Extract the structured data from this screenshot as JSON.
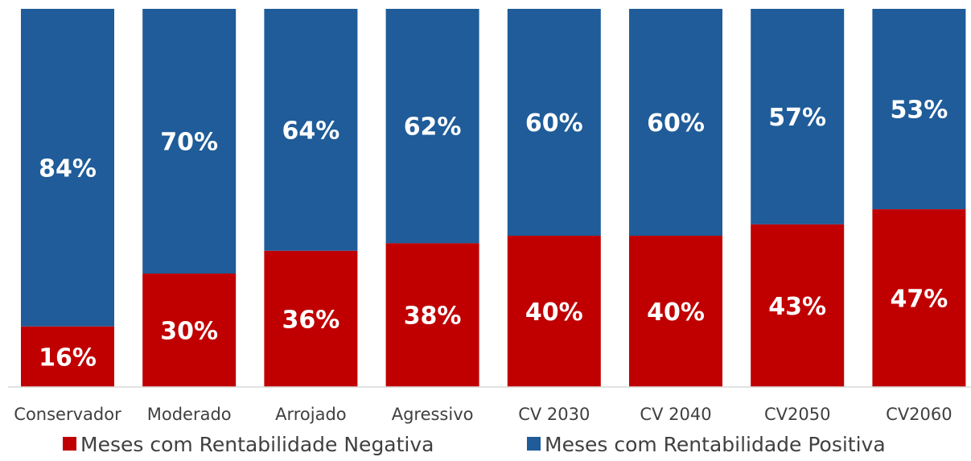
{
  "chart_data": {
    "type": "bar",
    "stacked": true,
    "percent_stacked": true,
    "categories": [
      "Conservador",
      "Moderado",
      "Arrojado",
      "Agressivo",
      "CV 2030",
      "CV 2040",
      "CV2050",
      "CV2060"
    ],
    "series": [
      {
        "name": "Meses com Rentabilidade Negativa",
        "color": "#C00000",
        "values": [
          16,
          30,
          36,
          38,
          40,
          40,
          43,
          47
        ],
        "labels": [
          "16%",
          "30%",
          "36%",
          "38%",
          "40%",
          "40%",
          "43%",
          "47%"
        ]
      },
      {
        "name": "Meses com Rentabilidade Positiva",
        "color": "#1F5C99",
        "values": [
          84,
          70,
          64,
          62,
          60,
          60,
          57,
          53
        ],
        "labels": [
          "84%",
          "70%",
          "64%",
          "62%",
          "60%",
          "60%",
          "57%",
          "53%"
        ]
      }
    ],
    "ylim": [
      0,
      100
    ],
    "grid": false,
    "legend_position": "bottom",
    "title": "",
    "xlabel": "",
    "ylabel": ""
  }
}
